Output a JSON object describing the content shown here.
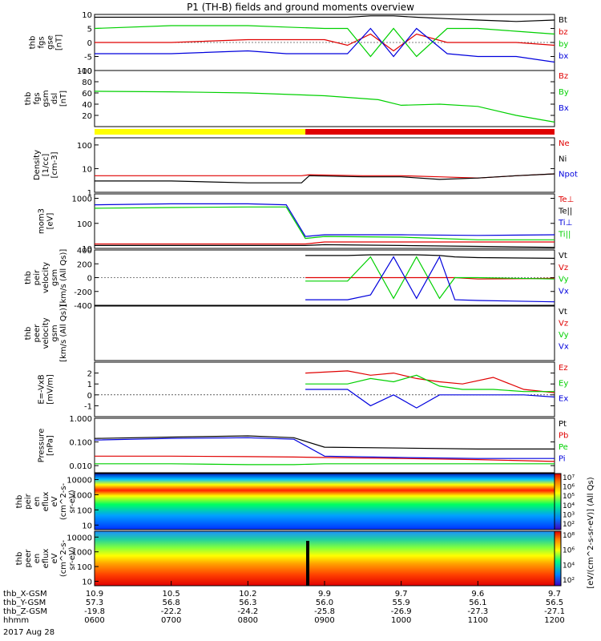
{
  "title": "P1 (TH-B) fields and ground moments overview",
  "date_label": "2017 Aug 28",
  "orbit_labels": {
    "rows": [
      "thb_X-GSM",
      "thb_Y-GSM",
      "thb_Z-GSM",
      "hhmm"
    ],
    "columns": [
      [
        "10.9",
        "57.3",
        "-19.8",
        "0600"
      ],
      [
        "10.5",
        "56.8",
        "-22.2",
        "0700"
      ],
      [
        "10.2",
        "56.3",
        "-24.2",
        "0800"
      ],
      [
        "9.9",
        "56.0",
        "-25.8",
        "0900"
      ],
      [
        "9.7",
        "55.9",
        "-26.9",
        "1000"
      ],
      [
        "9.6",
        "56.1",
        "-27.3",
        "1100"
      ],
      [
        "9.7",
        "56.5",
        "-27.1",
        "1200"
      ]
    ]
  },
  "colorbar_label": "[eV/(cm^2-s-sr-eV)] (All Qs)",
  "colors": {
    "black": "#000000",
    "red": "#e00000",
    "green": "#00d000",
    "blue": "#0000dd",
    "yellow": "#ffff00"
  },
  "chart_data": [
    {
      "id": "fgs-gse",
      "type": "line",
      "ylabel": [
        "thb",
        "fgs",
        "gse",
        "[nT]"
      ],
      "ylim": [
        -10,
        10
      ],
      "yticks": [
        "10",
        "5",
        "0",
        "-5",
        "-10"
      ],
      "legend": [
        {
          "name": "Bt",
          "color": "#000000"
        },
        {
          "name": "bz",
          "color": "#e00000"
        },
        {
          "name": "by",
          "color": "#00d000"
        },
        {
          "name": "bx",
          "color": "#0000dd"
        }
      ],
      "x": [
        6.0,
        7.0,
        8.0,
        8.5,
        9.0,
        9.3,
        9.6,
        9.9,
        10.2,
        10.6,
        11.0,
        11.5,
        12.0
      ],
      "series": [
        {
          "name": "Bt",
          "color": "#000000",
          "values": [
            9,
            9,
            9,
            9,
            9,
            9,
            9.5,
            9.5,
            9,
            8.5,
            8,
            7.5,
            8
          ]
        },
        {
          "name": "bz",
          "color": "#e00000",
          "values": [
            0,
            0,
            1,
            1,
            1,
            -1,
            3,
            -3,
            3,
            0,
            0,
            0,
            -1
          ]
        },
        {
          "name": "by",
          "color": "#00d000",
          "values": [
            5,
            6,
            6,
            5.5,
            5,
            5,
            -5,
            5,
            -5,
            5,
            5,
            4,
            3
          ]
        },
        {
          "name": "bx",
          "color": "#0000dd",
          "values": [
            -4,
            -4,
            -3,
            -4,
            -4,
            -4,
            5,
            -5,
            5,
            -4,
            -5,
            -5,
            -7
          ]
        }
      ]
    },
    {
      "id": "fgs-gsm",
      "type": "line",
      "ylabel": [
        "thb",
        "fgs",
        "gsm",
        "dsl",
        "[nT]"
      ],
      "ylim": [
        0,
        100
      ],
      "yticks": [
        "100",
        "80",
        "60",
        "40",
        "20"
      ],
      "legend": [
        {
          "name": "Bz",
          "color": "#e00000"
        },
        {
          "name": "By",
          "color": "#00d000"
        },
        {
          "name": "Bx",
          "color": "#0000dd"
        }
      ],
      "x": [
        6.0,
        7.0,
        8.0,
        9.0,
        9.7,
        10.0,
        10.5,
        11.0,
        11.5,
        12.0
      ],
      "series": [
        {
          "name": "By",
          "color": "#00d000",
          "values": [
            63,
            62,
            60,
            55,
            48,
            38,
            40,
            36,
            20,
            8
          ]
        }
      ]
    },
    {
      "id": "mode-bar",
      "type": "bar",
      "segments": [
        {
          "from": 6.0,
          "to": 8.75,
          "color": "#ffff00"
        },
        {
          "from": 8.75,
          "to": 12.0,
          "color": "#e00000"
        }
      ]
    },
    {
      "id": "density",
      "type": "line",
      "yscale": "log",
      "ylabel": [
        "Density",
        "[1/cc]",
        "[cm-3]"
      ],
      "ylim": [
        1,
        200
      ],
      "yticks": [
        "100",
        "10",
        "1"
      ],
      "legend": [
        {
          "name": "Ne",
          "color": "#e00000"
        },
        {
          "name": "Ni",
          "color": "#000000"
        },
        {
          "name": "Npot",
          "color": "#0000dd"
        }
      ],
      "x": [
        6.0,
        7.0,
        8.0,
        8.7,
        8.8,
        9.5,
        10.0,
        10.5,
        11.0,
        11.5,
        12.0
      ],
      "series": [
        {
          "name": "Ne",
          "color": "#e00000",
          "values": [
            5,
            5,
            5,
            5,
            5.5,
            5,
            5,
            4.5,
            4,
            5,
            6
          ]
        },
        {
          "name": "Ni",
          "color": "#000000",
          "values": [
            3,
            3,
            2.5,
            2.5,
            5,
            4.5,
            4.5,
            3.5,
            4,
            5,
            6
          ]
        }
      ]
    },
    {
      "id": "temperature",
      "type": "line",
      "yscale": "log",
      "ylabel": [
        "mom3",
        "[eV]"
      ],
      "ylim": [
        10,
        1500
      ],
      "yticks": [
        "1000",
        "100",
        "10"
      ],
      "legend": [
        {
          "name": "Te⊥",
          "color": "#e00000"
        },
        {
          "name": "Te||",
          "color": "#000000"
        },
        {
          "name": "Ti⊥",
          "color": "#0000dd"
        },
        {
          "name": "Ti||",
          "color": "#00d000"
        }
      ],
      "x": [
        6.0,
        7.0,
        8.0,
        8.5,
        8.75,
        9.0,
        10.0,
        11.0,
        12.0
      ],
      "series": [
        {
          "name": "Ti⊥",
          "color": "#0000dd",
          "values": [
            550,
            600,
            600,
            550,
            30,
            35,
            35,
            33,
            35
          ]
        },
        {
          "name": "Ti||",
          "color": "#00d000",
          "values": [
            400,
            430,
            450,
            450,
            25,
            30,
            28,
            22,
            22
          ]
        },
        {
          "name": "Te⊥",
          "color": "#e00000",
          "values": [
            15,
            15,
            15,
            15,
            15,
            18,
            18,
            18,
            18
          ]
        },
        {
          "name": "Te||",
          "color": "#000000",
          "values": [
            13,
            13,
            13,
            13,
            13,
            14,
            13,
            12,
            11
          ]
        }
      ]
    },
    {
      "id": "peir-velocity",
      "type": "line",
      "ylabel": [
        "thb",
        "peir",
        "velocity",
        "gsm",
        "[km/s (All Qs)]"
      ],
      "ylim": [
        -400,
        400
      ],
      "yticks": [
        "400",
        "200",
        "0",
        "-200",
        "-400"
      ],
      "legend": [
        {
          "name": "Vt",
          "color": "#000000"
        },
        {
          "name": "Vz",
          "color": "#e00000"
        },
        {
          "name": "Vy",
          "color": "#00d000"
        },
        {
          "name": "Vx",
          "color": "#0000dd"
        }
      ],
      "x": [
        8.75,
        9.3,
        9.6,
        9.9,
        10.2,
        10.5,
        10.7,
        11.0,
        12.0
      ],
      "series": [
        {
          "name": "Vt",
          "color": "#000000",
          "values": [
            320,
            320,
            330,
            330,
            330,
            320,
            300,
            290,
            280
          ]
        },
        {
          "name": "Vz",
          "color": "#e00000",
          "values": [
            0,
            0,
            0,
            0,
            0,
            0,
            0,
            -20,
            -10
          ]
        },
        {
          "name": "Vy",
          "color": "#00d000",
          "values": [
            -50,
            -50,
            300,
            -300,
            300,
            -300,
            0,
            0,
            -20
          ]
        },
        {
          "name": "Vx",
          "color": "#0000dd",
          "values": [
            -320,
            -320,
            -250,
            300,
            -300,
            300,
            -320,
            -330,
            -350
          ]
        }
      ]
    },
    {
      "id": "peer-velocity",
      "type": "line",
      "ylabel": [
        "thb",
        "peer",
        "velocity",
        "gsm",
        "[km/s (All Qs)]"
      ],
      "legend": [
        {
          "name": "Vt",
          "color": "#000000"
        },
        {
          "name": "Vz",
          "color": "#e00000"
        },
        {
          "name": "Vy",
          "color": "#00d000"
        },
        {
          "name": "Vx",
          "color": "#0000dd"
        }
      ],
      "series": []
    },
    {
      "id": "efield",
      "type": "line",
      "ylabel": [
        "E=-VxB",
        "[mV/m]"
      ],
      "ylim": [
        -2,
        3
      ],
      "yticks": [
        "2",
        "1",
        "0",
        "-1"
      ],
      "legend": [
        {
          "name": "Ez",
          "color": "#e00000"
        },
        {
          "name": "Ey",
          "color": "#00d000"
        },
        {
          "name": "Ex",
          "color": "#0000dd"
        }
      ],
      "x": [
        8.75,
        9.3,
        9.6,
        9.9,
        10.2,
        10.5,
        10.8,
        11.2,
        11.6,
        12.0
      ],
      "series": [
        {
          "name": "Ez",
          "color": "#e00000",
          "values": [
            2.0,
            2.2,
            1.8,
            2.0,
            1.5,
            1.2,
            1.0,
            1.6,
            0.5,
            0.2
          ]
        },
        {
          "name": "Ey",
          "color": "#00d000",
          "values": [
            1.0,
            1.0,
            1.5,
            1.2,
            1.8,
            0.8,
            0.5,
            0.5,
            0.3,
            0.3
          ]
        },
        {
          "name": "Ex",
          "color": "#0000dd",
          "values": [
            0.5,
            0.5,
            -1.0,
            0.0,
            -1.2,
            0.0,
            0.0,
            0.0,
            0.0,
            -0.2
          ]
        }
      ]
    },
    {
      "id": "pressure",
      "type": "line",
      "yscale": "log",
      "ylabel": [
        "Pressure",
        "[nPa]"
      ],
      "ylim": [
        0.005,
        1.0
      ],
      "yticks": [
        "1.000",
        "0.100",
        "0.010"
      ],
      "legend": [
        {
          "name": "Pt",
          "color": "#000000"
        },
        {
          "name": "Pb",
          "color": "#e00000"
        },
        {
          "name": "Pe",
          "color": "#00d000"
        },
        {
          "name": "Pi",
          "color": "#0000dd"
        }
      ],
      "x": [
        6.0,
        7.0,
        8.0,
        8.6,
        9.0,
        10.0,
        11.0,
        12.0
      ],
      "series": [
        {
          "name": "Pt",
          "color": "#000000",
          "values": [
            0.14,
            0.16,
            0.18,
            0.15,
            0.06,
            0.055,
            0.05,
            0.05
          ]
        },
        {
          "name": "Pi",
          "color": "#0000dd",
          "values": [
            0.12,
            0.14,
            0.15,
            0.13,
            0.025,
            0.022,
            0.02,
            0.02
          ]
        },
        {
          "name": "Pb",
          "color": "#e00000",
          "values": [
            0.025,
            0.025,
            0.024,
            0.023,
            0.022,
            0.02,
            0.018,
            0.015
          ]
        },
        {
          "name": "Pe",
          "color": "#00d000",
          "values": [
            0.012,
            0.012,
            0.011,
            0.011,
            0.012,
            0.012,
            0.012,
            0.012
          ]
        }
      ]
    },
    {
      "id": "peir-spectrogram",
      "type": "heatmap",
      "ylabel": [
        "thb",
        "peir",
        "en",
        "eflux",
        "eV",
        "(cm^2-s-",
        "sr-eV)"
      ],
      "yscale": "log",
      "ylim": [
        5,
        25000
      ],
      "yticks": [
        "10000",
        "1000",
        "100",
        "10"
      ],
      "colorbar_ticks": [
        "10⁷",
        "10⁶",
        "10⁵",
        "10⁴",
        "10³",
        "10²"
      ]
    },
    {
      "id": "peer-spectrogram",
      "type": "heatmap",
      "ylabel": [
        "thb",
        "peer",
        "en",
        "eflux",
        "eV",
        "(cm^2-s-",
        "sr-eV)"
      ],
      "yscale": "log",
      "ylim": [
        5,
        25000
      ],
      "yticks": [
        "10000",
        "1000",
        "100",
        "10"
      ],
      "colorbar_ticks": [
        "10⁸",
        "10⁶",
        "10⁴",
        "10²"
      ]
    }
  ]
}
